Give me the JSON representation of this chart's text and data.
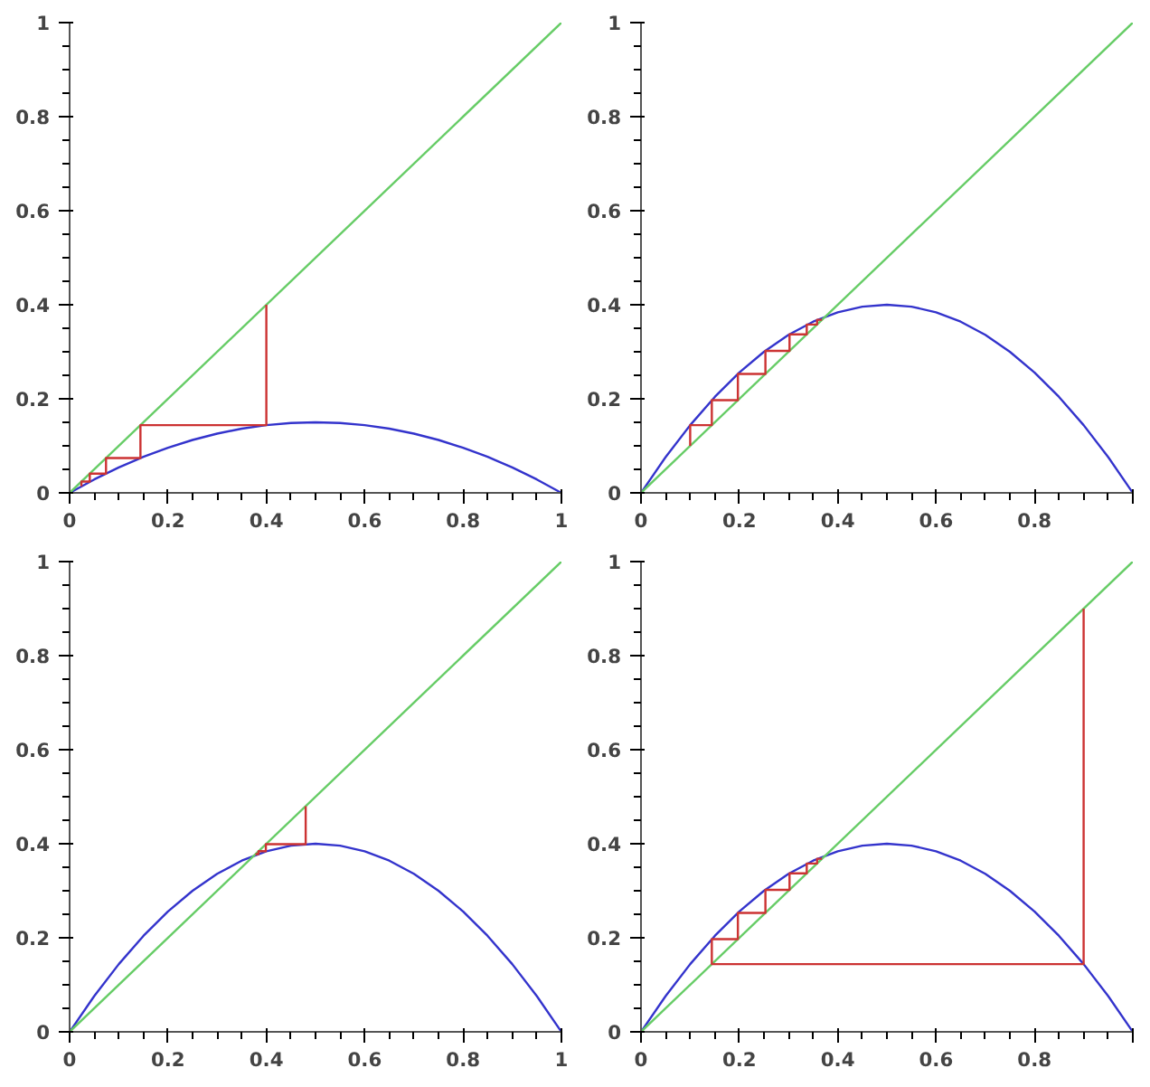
{
  "chart_data": [
    {
      "type": "line",
      "xlim": [
        0,
        1
      ],
      "ylim": [
        0,
        1
      ],
      "xticks": [
        0,
        0.2,
        0.4,
        0.6,
        0.8,
        1
      ],
      "yticks": [
        0,
        0.2,
        0.4,
        0.6,
        0.8,
        1
      ],
      "grid": false,
      "series": [
        {
          "color": "#3333cc",
          "x": [
            0,
            0.05,
            0.1,
            0.15,
            0.2,
            0.25,
            0.3,
            0.35,
            0.4,
            0.45,
            0.5,
            0.55,
            0.6,
            0.65,
            0.7,
            0.75,
            0.8,
            0.85,
            0.9,
            0.95,
            1
          ],
          "values": [
            0,
            0.0285,
            0.054,
            0.0765,
            0.096,
            0.1125,
            0.126,
            0.1365,
            0.144,
            0.1485,
            0.15,
            0.1485,
            0.144,
            0.1365,
            0.126,
            0.1125,
            0.096,
            0.0765,
            0.054,
            0.0285,
            0
          ]
        },
        {
          "color": "#66cc66",
          "x": [
            0,
            1
          ],
          "values": [
            0,
            1
          ]
        },
        {
          "color": "#cc3333",
          "x": [
            0.4,
            0.4,
            0.144,
            0.144,
            0.074,
            0.074,
            0.041,
            0.041,
            0.024,
            0.024
          ],
          "values": [
            0.4,
            0.144,
            0.144,
            0.074,
            0.074,
            0.041,
            0.041,
            0.024,
            0.024,
            0.014
          ]
        }
      ]
    },
    {
      "type": "line",
      "xlim": [
        0,
        1
      ],
      "ylim": [
        0,
        1
      ],
      "xticks": [
        0,
        0.2,
        0.4,
        0.6,
        0.8,
        {
          "value": 1,
          "label": null
        }
      ],
      "yticks": [
        0,
        0.2,
        0.4,
        0.6,
        0.8,
        1
      ],
      "grid": false,
      "series": [
        {
          "color": "#3333cc",
          "x": [
            0,
            0.05,
            0.1,
            0.15,
            0.2,
            0.25,
            0.3,
            0.35,
            0.4,
            0.45,
            0.5,
            0.55,
            0.6,
            0.65,
            0.7,
            0.75,
            0.8,
            0.85,
            0.9,
            0.95,
            1
          ],
          "values": [
            0,
            0.076,
            0.144,
            0.204,
            0.256,
            0.3,
            0.336,
            0.364,
            0.384,
            0.396,
            0.4,
            0.396,
            0.384,
            0.364,
            0.336,
            0.3,
            0.256,
            0.204,
            0.144,
            0.076,
            0
          ]
        },
        {
          "color": "#66cc66",
          "x": [
            0,
            1
          ],
          "values": [
            0,
            1
          ]
        },
        {
          "color": "#cc3333",
          "x": [
            0.1,
            0.1,
            0.144,
            0.144,
            0.197,
            0.197,
            0.253,
            0.253,
            0.302,
            0.302,
            0.337,
            0.337,
            0.358,
            0.358,
            0.368
          ],
          "values": [
            0.1,
            0.144,
            0.144,
            0.197,
            0.197,
            0.253,
            0.253,
            0.302,
            0.302,
            0.337,
            0.337,
            0.358,
            0.358,
            0.368,
            0.368
          ]
        }
      ]
    },
    {
      "type": "line",
      "xlim": [
        0,
        1
      ],
      "ylim": [
        0,
        1
      ],
      "xticks": [
        0,
        0.2,
        0.4,
        0.6,
        0.8,
        1
      ],
      "yticks": [
        0,
        0.2,
        0.4,
        0.6,
        0.8,
        1
      ],
      "grid": false,
      "series": [
        {
          "color": "#3333cc",
          "x": [
            0,
            0.05,
            0.1,
            0.15,
            0.2,
            0.25,
            0.3,
            0.35,
            0.4,
            0.45,
            0.5,
            0.55,
            0.6,
            0.65,
            0.7,
            0.75,
            0.8,
            0.85,
            0.9,
            0.95,
            1
          ],
          "values": [
            0,
            0.076,
            0.144,
            0.204,
            0.256,
            0.3,
            0.336,
            0.364,
            0.384,
            0.396,
            0.4,
            0.396,
            0.384,
            0.364,
            0.336,
            0.3,
            0.256,
            0.204,
            0.144,
            0.076,
            0
          ]
        },
        {
          "color": "#66cc66",
          "x": [
            0,
            1
          ],
          "values": [
            0,
            1
          ]
        },
        {
          "color": "#cc3333",
          "x": [
            0.48,
            0.48,
            0.399,
            0.399,
            0.384,
            0.384,
            0.378
          ],
          "values": [
            0.48,
            0.399,
            0.399,
            0.384,
            0.384,
            0.378,
            0.378
          ]
        }
      ]
    },
    {
      "type": "line",
      "xlim": [
        0,
        1
      ],
      "ylim": [
        0,
        1
      ],
      "xticks": [
        0,
        0.2,
        0.4,
        0.6,
        0.8,
        {
          "value": 1,
          "label": null
        }
      ],
      "yticks": [
        0,
        0.2,
        0.4,
        0.6,
        0.8,
        1
      ],
      "grid": false,
      "series": [
        {
          "color": "#3333cc",
          "x": [
            0,
            0.05,
            0.1,
            0.15,
            0.2,
            0.25,
            0.3,
            0.35,
            0.4,
            0.45,
            0.5,
            0.55,
            0.6,
            0.65,
            0.7,
            0.75,
            0.8,
            0.85,
            0.9,
            0.95,
            1
          ],
          "values": [
            0,
            0.076,
            0.144,
            0.204,
            0.256,
            0.3,
            0.336,
            0.364,
            0.384,
            0.396,
            0.4,
            0.396,
            0.384,
            0.364,
            0.336,
            0.3,
            0.256,
            0.204,
            0.144,
            0.076,
            0
          ]
        },
        {
          "color": "#66cc66",
          "x": [
            0,
            1
          ],
          "values": [
            0,
            1
          ]
        },
        {
          "color": "#cc3333",
          "x": [
            0.9,
            0.9,
            0.144,
            0.144,
            0.197,
            0.197,
            0.253,
            0.253,
            0.302,
            0.302,
            0.337,
            0.337,
            0.358,
            0.358,
            0.368
          ],
          "values": [
            0.9,
            0.144,
            0.144,
            0.197,
            0.197,
            0.253,
            0.253,
            0.302,
            0.302,
            0.337,
            0.337,
            0.358,
            0.358,
            0.368,
            0.368
          ]
        }
      ]
    }
  ]
}
